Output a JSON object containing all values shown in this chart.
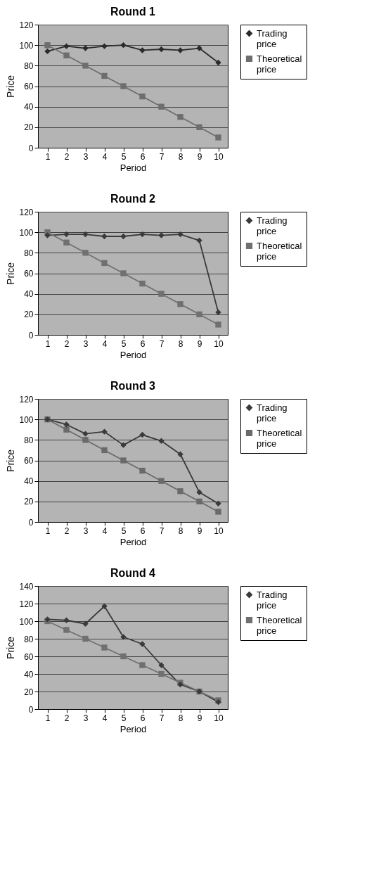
{
  "chart_data": [
    {
      "type": "line",
      "title": "Round 1",
      "xlabel": "Period",
      "ylabel": "Price",
      "categories": [
        "1",
        "2",
        "3",
        "4",
        "5",
        "6",
        "7",
        "8",
        "9",
        "10"
      ],
      "ylim": [
        0,
        120
      ],
      "yticks": [
        0,
        20,
        40,
        60,
        80,
        100,
        120
      ],
      "grid": "y",
      "legend": "right",
      "series": [
        {
          "name": "Trading price",
          "color": "#2b2b2b",
          "marker": "diamond",
          "values": [
            94,
            99,
            97,
            99,
            100,
            95,
            96,
            95,
            97,
            83
          ]
        },
        {
          "name": "Theoretical price",
          "color": "#6e6e6e",
          "marker": "square",
          "values": [
            100,
            90,
            80,
            70,
            60,
            50,
            40,
            30,
            20,
            10
          ]
        }
      ]
    },
    {
      "type": "line",
      "title": "Round 2",
      "xlabel": "Period",
      "ylabel": "Price",
      "categories": [
        "1",
        "2",
        "3",
        "4",
        "5",
        "6",
        "7",
        "8",
        "9",
        "10"
      ],
      "ylim": [
        0,
        120
      ],
      "yticks": [
        0,
        20,
        40,
        60,
        80,
        100,
        120
      ],
      "grid": "y",
      "legend": "right",
      "series": [
        {
          "name": "Trading price",
          "color": "#3a3a3a",
          "marker": "diamond",
          "values": [
            97,
            98,
            98,
            96,
            96,
            98,
            97,
            98,
            92,
            22
          ]
        },
        {
          "name": "Theoretical price",
          "color": "#707070",
          "marker": "square",
          "values": [
            100,
            90,
            80,
            70,
            60,
            50,
            40,
            30,
            20,
            10
          ]
        }
      ]
    },
    {
      "type": "line",
      "title": "Round 3",
      "xlabel": "Period",
      "ylabel": "Price",
      "categories": [
        "1",
        "2",
        "3",
        "4",
        "5",
        "6",
        "7",
        "8",
        "9",
        "10"
      ],
      "ylim": [
        0,
        120
      ],
      "yticks": [
        0,
        20,
        40,
        60,
        80,
        100,
        120
      ],
      "grid": "y",
      "legend": "right",
      "series": [
        {
          "name": "Trading price",
          "color": "#3a3a3a",
          "marker": "diamond",
          "values": [
            100,
            95,
            86,
            88,
            75,
            85,
            79,
            66,
            29,
            18
          ]
        },
        {
          "name": "Theoretical price",
          "color": "#6a6a6a",
          "marker": "square",
          "values": [
            100,
            90,
            80,
            70,
            60,
            50,
            40,
            30,
            20,
            10
          ]
        }
      ]
    },
    {
      "type": "line",
      "title": "Round 4",
      "xlabel": "Period",
      "ylabel": "Price",
      "categories": [
        "1",
        "2",
        "3",
        "4",
        "5",
        "6",
        "7",
        "8",
        "9",
        "10"
      ],
      "ylim": [
        0,
        140
      ],
      "yticks": [
        0,
        20,
        40,
        60,
        80,
        100,
        120,
        140
      ],
      "grid": "y",
      "legend": "right",
      "series": [
        {
          "name": "Trading price",
          "color": "#3a3a3a",
          "marker": "diamond",
          "values": [
            102,
            101,
            97,
            117,
            82,
            74,
            50,
            28,
            20,
            8
          ]
        },
        {
          "name": "Theoretical price",
          "color": "#707070",
          "marker": "square",
          "values": [
            100,
            90,
            80,
            70,
            60,
            50,
            40,
            30,
            20,
            10
          ]
        }
      ]
    }
  ]
}
